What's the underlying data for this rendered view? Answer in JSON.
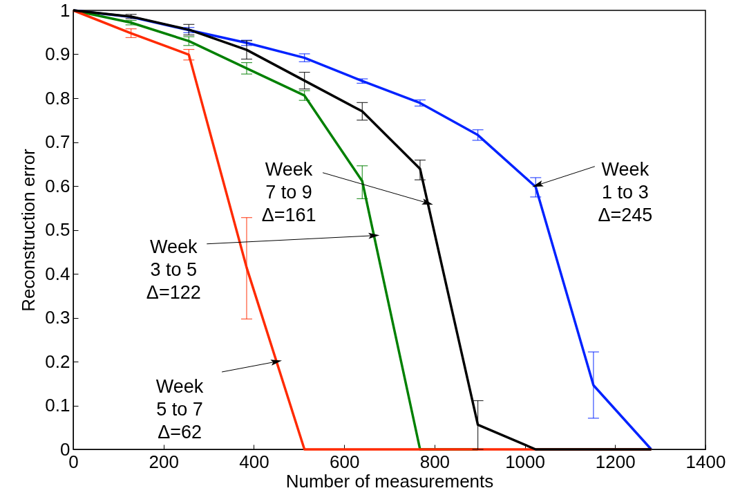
{
  "chart_data": {
    "type": "line",
    "xlabel": "Number of measurements",
    "ylabel": "Reconstruction error",
    "x": [
      0,
      128,
      256,
      384,
      512,
      640,
      768,
      896,
      1024,
      1152,
      1280
    ],
    "xlim": [
      0,
      1400
    ],
    "xticks": [
      0,
      200,
      400,
      600,
      800,
      1000,
      1200,
      1400
    ],
    "ylim": [
      0,
      1
    ],
    "yticks": [
      0,
      0.1,
      0.2,
      0.3,
      0.4,
      0.5,
      0.6,
      0.7,
      0.8,
      0.9,
      1
    ],
    "grid": false,
    "line_style": "solid",
    "marker": "none",
    "series": [
      {
        "color": "#0022ff",
        "values": [
          1,
          0.985,
          0.955,
          0.926,
          0.892,
          0.839,
          0.789,
          0.716,
          0.598,
          0.146,
          0
        ],
        "errors": [
          null,
          null,
          0.006,
          0.006,
          0.009,
          0.005,
          0.007,
          0.012,
          [
            0.575,
            0.619
          ],
          [
            0.071,
            0.222
          ],
          null
        ]
      },
      {
        "color": "#008000",
        "values": [
          1,
          0.972,
          0.93,
          0.868,
          0.806,
          0.611,
          0,
          0,
          null,
          null,
          null
        ],
        "errors": [
          null,
          0.005,
          0.01,
          0.013,
          0.011,
          [
            0.571,
            0.646
          ],
          null,
          null,
          null,
          null,
          null
        ]
      },
      {
        "color": "#ff2a00",
        "values": [
          1,
          0.948,
          0.899,
          0.414,
          0,
          0,
          0,
          0,
          0,
          0,
          0
        ],
        "errors": [
          null,
          0.01,
          0.012,
          [
            0.297,
            0.528
          ],
          null,
          null,
          null,
          null,
          null,
          null,
          null
        ]
      },
      {
        "color": "#000000",
        "values": [
          1,
          0.986,
          0.956,
          0.91,
          0.84,
          0.77,
          0.639,
          0.056,
          0,
          0,
          0
        ],
        "errors": [
          null,
          0.005,
          0.012,
          0.021,
          0.019,
          0.02,
          [
            0.614,
            0.659
          ],
          [
            0,
            0.111
          ],
          null,
          null,
          null
        ]
      }
    ],
    "annotations": [
      {
        "text": "Week\n1 to 3\nΔ=245",
        "x": 1028,
        "y": 0.602
      },
      {
        "text": "Week\n7 to 9\nΔ=161",
        "x": 785,
        "y": 0.561
      },
      {
        "text": "Week\n3 to 5\nΔ=122",
        "x": 666,
        "y": 0.487
      },
      {
        "text": "Week\n5 to 7\nΔ=62",
        "x": 450,
        "y": 0.2
      }
    ]
  }
}
